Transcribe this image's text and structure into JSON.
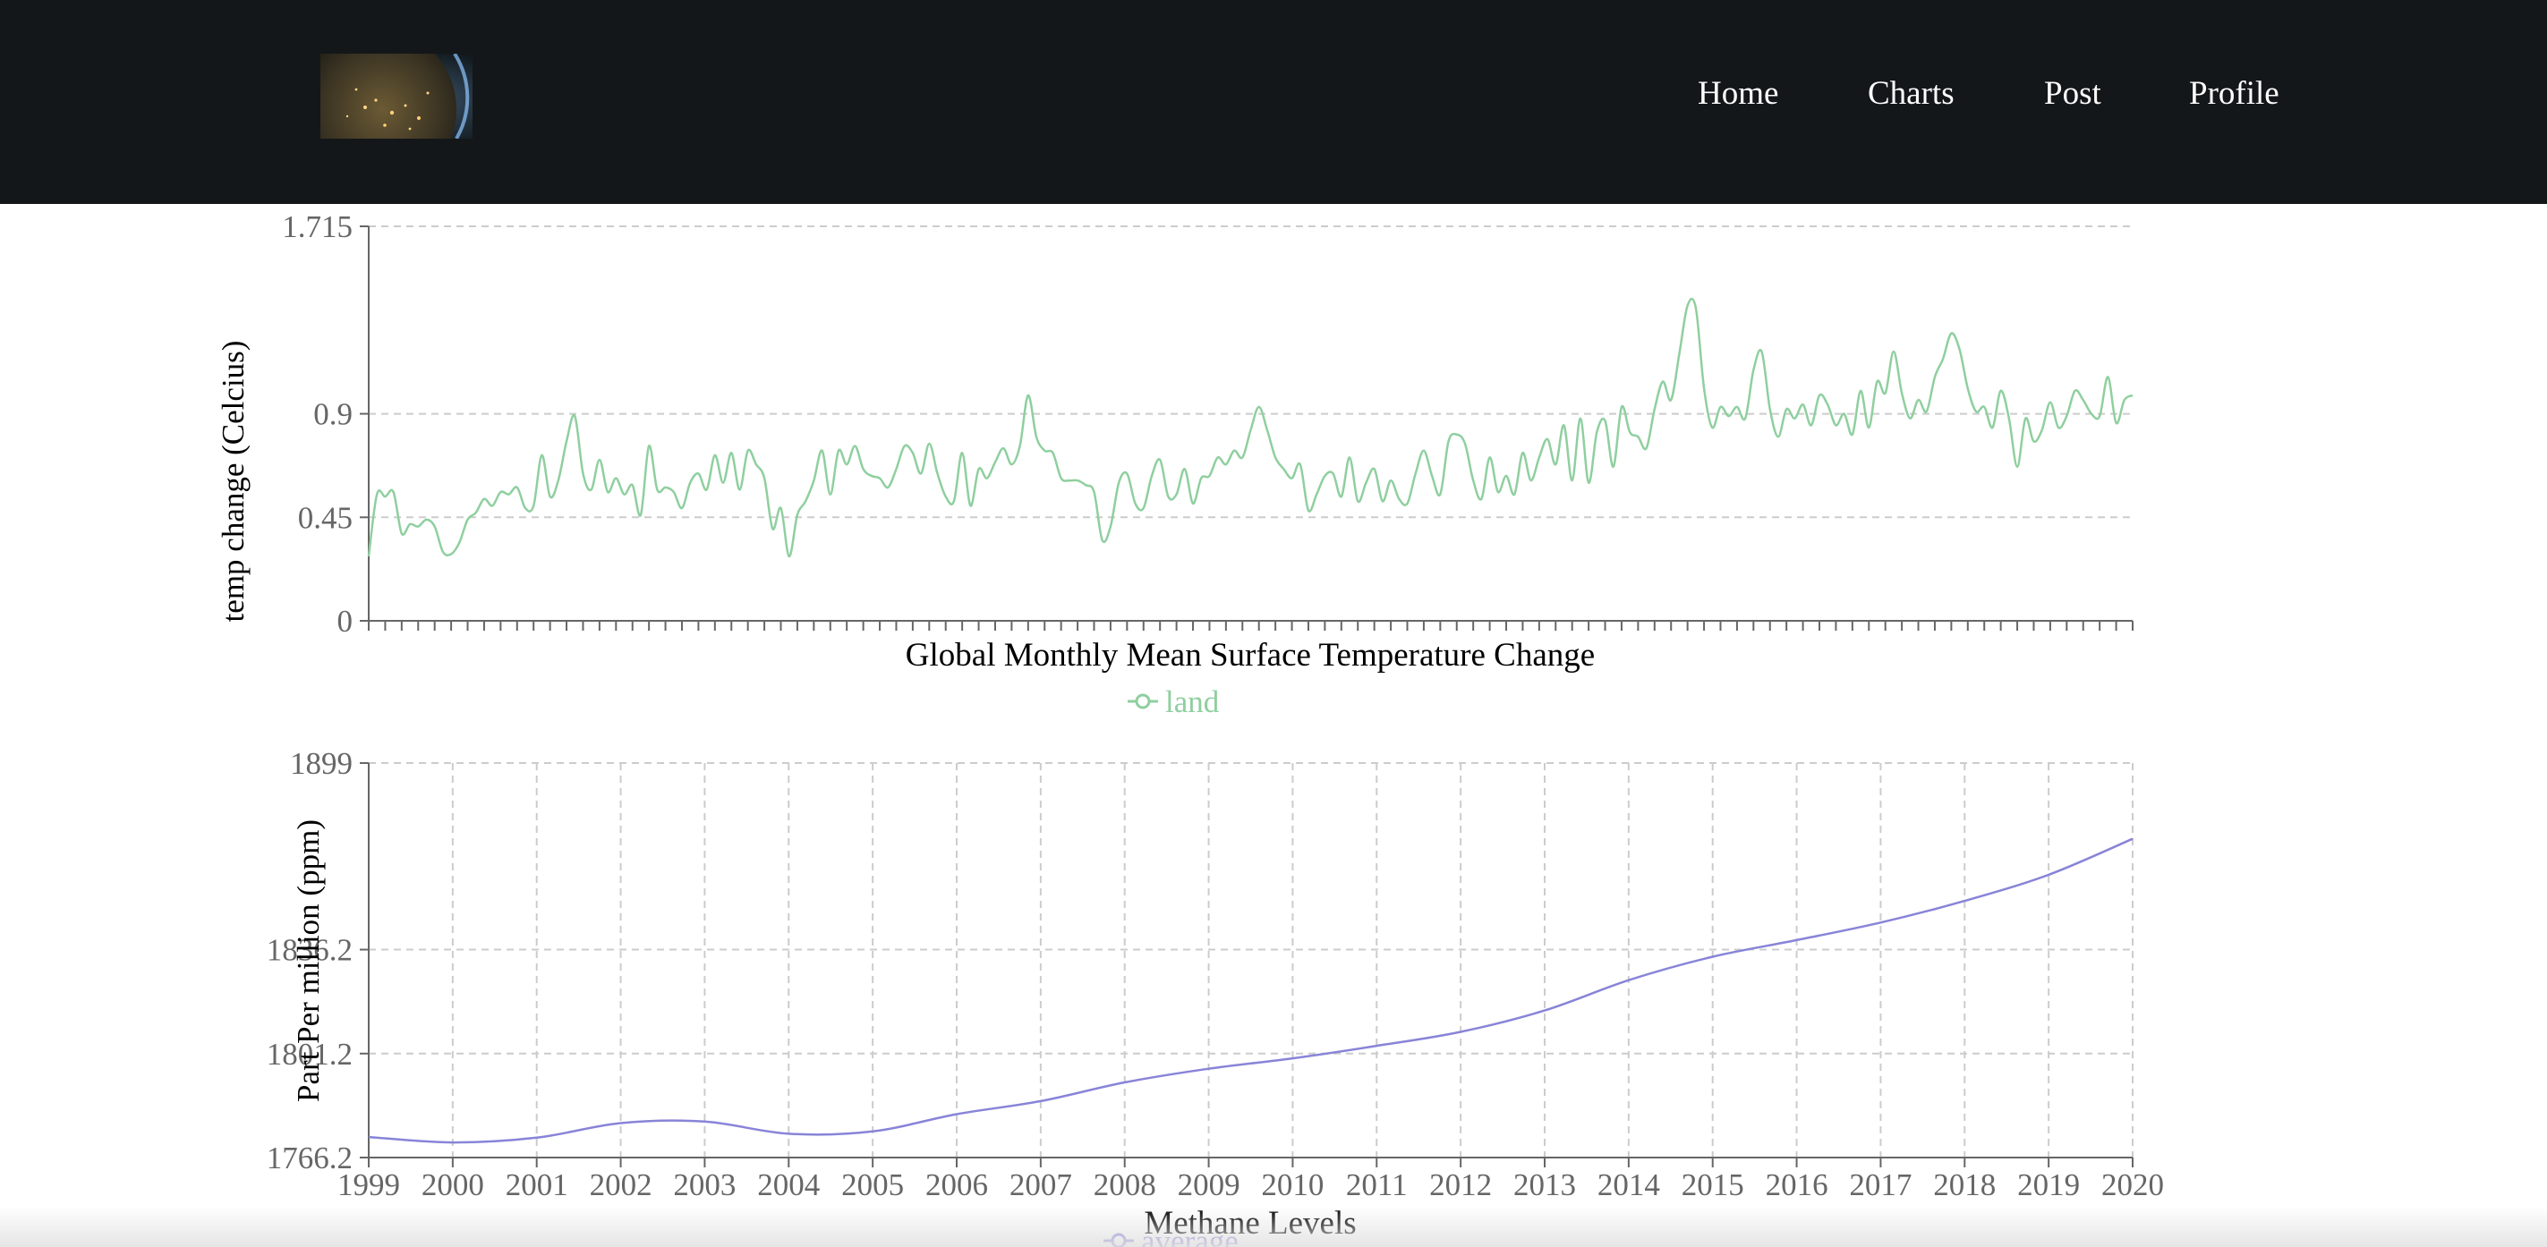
{
  "nav": {
    "items": [
      {
        "label": "Home"
      },
      {
        "label": "Charts"
      },
      {
        "label": "Post"
      },
      {
        "label": "Profile"
      }
    ]
  },
  "colors": {
    "navbar": "#141719",
    "land_series": "#8fcf9f",
    "average_series": "#8884d8",
    "grid": "#cccccc",
    "axis": "#666666"
  },
  "chart_data": [
    {
      "type": "line",
      "title": "Global Monthly Mean Surface Temperature Change",
      "ylabel": "temp change (Celcius)",
      "xlabel": "",
      "ylim": [
        0,
        1.715
      ],
      "yticks": [
        "0",
        "0.45",
        "0.9",
        "1.715"
      ],
      "grid": "horizontal",
      "legend_position": "bottom",
      "series": [
        {
          "name": "land",
          "values": [
            0.28,
            0.55,
            0.54,
            0.56,
            0.38,
            0.42,
            0.41,
            0.44,
            0.41,
            0.3,
            0.29,
            0.34,
            0.44,
            0.47,
            0.53,
            0.5,
            0.56,
            0.55,
            0.58,
            0.49,
            0.5,
            0.72,
            0.54,
            0.61,
            0.78,
            0.89,
            0.64,
            0.57,
            0.7,
            0.56,
            0.62,
            0.55,
            0.59,
            0.46,
            0.76,
            0.57,
            0.58,
            0.56,
            0.49,
            0.6,
            0.64,
            0.57,
            0.72,
            0.6,
            0.73,
            0.57,
            0.74,
            0.68,
            0.62,
            0.4,
            0.49,
            0.28,
            0.46,
            0.52,
            0.61,
            0.74,
            0.55,
            0.74,
            0.68,
            0.76,
            0.66,
            0.63,
            0.62,
            0.58,
            0.66,
            0.76,
            0.73,
            0.64,
            0.77,
            0.64,
            0.54,
            0.52,
            0.73,
            0.5,
            0.66,
            0.62,
            0.69,
            0.75,
            0.68,
            0.76,
            0.98,
            0.8,
            0.74,
            0.73,
            0.62,
            0.61,
            0.61,
            0.59,
            0.56,
            0.35,
            0.41,
            0.6,
            0.64,
            0.51,
            0.49,
            0.63,
            0.7,
            0.54,
            0.55,
            0.66,
            0.51,
            0.62,
            0.63,
            0.71,
            0.68,
            0.74,
            0.71,
            0.83,
            0.93,
            0.83,
            0.71,
            0.66,
            0.62,
            0.68,
            0.48,
            0.55,
            0.63,
            0.64,
            0.54,
            0.71,
            0.52,
            0.6,
            0.66,
            0.52,
            0.61,
            0.53,
            0.51,
            0.64,
            0.74,
            0.63,
            0.55,
            0.78,
            0.81,
            0.77,
            0.61,
            0.53,
            0.71,
            0.56,
            0.63,
            0.55,
            0.73,
            0.61,
            0.71,
            0.79,
            0.68,
            0.85,
            0.61,
            0.88,
            0.6,
            0.82,
            0.87,
            0.67,
            0.93,
            0.82,
            0.8,
            0.75,
            0.92,
            1.04,
            0.96,
            1.16,
            1.37,
            1.36,
            1.01,
            0.84,
            0.93,
            0.89,
            0.93,
            0.88,
            1.09,
            1.17,
            0.92,
            0.8,
            0.92,
            0.88,
            0.94,
            0.85,
            0.98,
            0.94,
            0.85,
            0.9,
            0.81,
            1.0,
            0.84,
            1.04,
            0.99,
            1.17,
            0.99,
            0.88,
            0.96,
            0.91,
            1.06,
            1.14,
            1.25,
            1.18,
            1.01,
            0.91,
            0.93,
            0.84,
            1.0,
            0.88,
            0.67,
            0.88,
            0.78,
            0.83,
            0.95,
            0.84,
            0.89,
            1.0,
            0.96,
            0.9,
            0.89,
            1.06,
            0.86,
            0.96,
            0.98
          ]
        }
      ]
    },
    {
      "type": "line",
      "title": "Methane Levels",
      "ylabel": "Part Per million (ppm)",
      "xlabel": "",
      "categories": [
        "1999",
        "2000",
        "2001",
        "2002",
        "2003",
        "2004",
        "2005",
        "2006",
        "2007",
        "2008",
        "2009",
        "2010",
        "2011",
        "2012",
        "2013",
        "2014",
        "2015",
        "2016",
        "2017",
        "2018",
        "2019",
        "2020"
      ],
      "ylim": [
        1766.2,
        1899
      ],
      "yticks": [
        "1766.2",
        "1801.2",
        "1836.2",
        "1899"
      ],
      "grid": "both",
      "legend_position": "bottom",
      "series": [
        {
          "name": "average",
          "values": [
            1773.1,
            1771.3,
            1772.9,
            1777.8,
            1778.3,
            1774.2,
            1775.0,
            1780.8,
            1785.2,
            1791.5,
            1796.1,
            1799.6,
            1803.8,
            1808.5,
            1815.7,
            1825.9,
            1833.8,
            1839.4,
            1845.3,
            1852.6,
            1861.4,
            1873.5
          ]
        }
      ]
    }
  ]
}
